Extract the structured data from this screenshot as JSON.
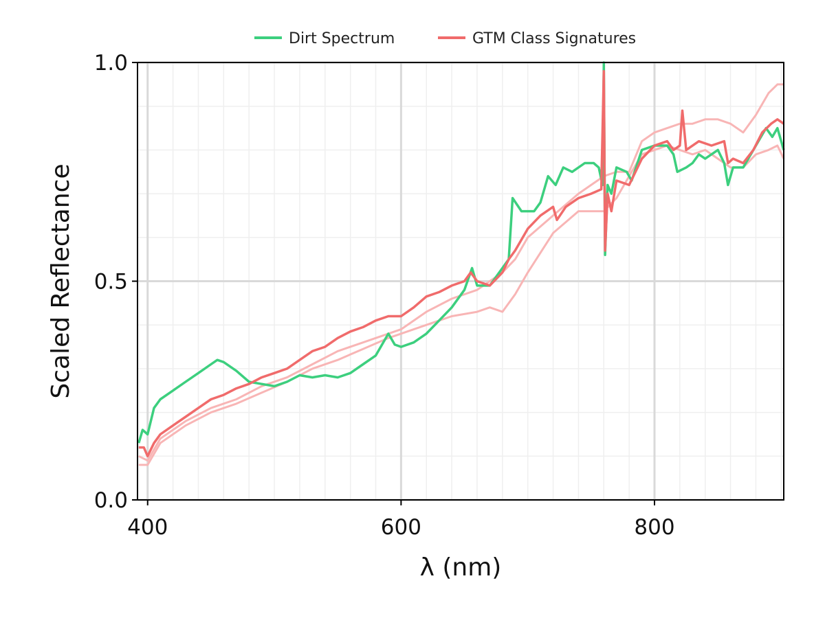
{
  "chart_data": {
    "type": "line",
    "title": "",
    "xlabel": "λ (nm)",
    "ylabel": "Scaled Reflectance",
    "xlim": [
      392,
      902
    ],
    "ylim": [
      0.0,
      1.0
    ],
    "x_ticks": [
      400,
      600,
      800
    ],
    "x_tick_labels": [
      "400",
      "600",
      "800"
    ],
    "y_ticks": [
      0.0,
      0.5,
      1.0
    ],
    "y_tick_labels": [
      "0.0",
      "0.5",
      "1.0"
    ],
    "grid": true,
    "legend": {
      "placement": "top-center, outside plot",
      "entries": [
        "Dirt Spectrum",
        "GTM Class Signatures"
      ]
    },
    "colors": {
      "dirt": "#3ccf7e",
      "gtm": "#f06b6b",
      "gtm_faint": "#f8b5b5",
      "grid_major": "#d9d9d9",
      "grid_minor": "#efefef"
    },
    "series": [
      {
        "name": "Dirt Spectrum",
        "role": "dirt",
        "points": [
          [
            393,
            0.13
          ],
          [
            396,
            0.16
          ],
          [
            400,
            0.15
          ],
          [
            405,
            0.21
          ],
          [
            410,
            0.23
          ],
          [
            420,
            0.25
          ],
          [
            430,
            0.27
          ],
          [
            440,
            0.29
          ],
          [
            450,
            0.31
          ],
          [
            455,
            0.32
          ],
          [
            460,
            0.315
          ],
          [
            470,
            0.295
          ],
          [
            480,
            0.27
          ],
          [
            490,
            0.265
          ],
          [
            500,
            0.26
          ],
          [
            510,
            0.27
          ],
          [
            520,
            0.285
          ],
          [
            530,
            0.28
          ],
          [
            540,
            0.285
          ],
          [
            550,
            0.28
          ],
          [
            560,
            0.29
          ],
          [
            570,
            0.31
          ],
          [
            580,
            0.33
          ],
          [
            590,
            0.38
          ],
          [
            595,
            0.355
          ],
          [
            600,
            0.35
          ],
          [
            610,
            0.36
          ],
          [
            620,
            0.38
          ],
          [
            630,
            0.41
          ],
          [
            640,
            0.44
          ],
          [
            650,
            0.48
          ],
          [
            656,
            0.53
          ],
          [
            660,
            0.49
          ],
          [
            670,
            0.49
          ],
          [
            680,
            0.53
          ],
          [
            685,
            0.55
          ],
          [
            688,
            0.69
          ],
          [
            695,
            0.66
          ],
          [
            705,
            0.66
          ],
          [
            710,
            0.68
          ],
          [
            716,
            0.74
          ],
          [
            722,
            0.72
          ],
          [
            728,
            0.76
          ],
          [
            735,
            0.75
          ],
          [
            745,
            0.77
          ],
          [
            752,
            0.77
          ],
          [
            756,
            0.76
          ],
          [
            759,
            0.72
          ],
          [
            760,
            1.0
          ],
          [
            761,
            0.56
          ],
          [
            763,
            0.72
          ],
          [
            766,
            0.7
          ],
          [
            770,
            0.76
          ],
          [
            778,
            0.75
          ],
          [
            782,
            0.73
          ],
          [
            790,
            0.8
          ],
          [
            800,
            0.81
          ],
          [
            810,
            0.81
          ],
          [
            815,
            0.79
          ],
          [
            818,
            0.75
          ],
          [
            825,
            0.76
          ],
          [
            830,
            0.77
          ],
          [
            835,
            0.79
          ],
          [
            840,
            0.78
          ],
          [
            850,
            0.8
          ],
          [
            855,
            0.77
          ],
          [
            858,
            0.72
          ],
          [
            862,
            0.76
          ],
          [
            870,
            0.76
          ],
          [
            876,
            0.79
          ],
          [
            882,
            0.82
          ],
          [
            888,
            0.85
          ],
          [
            893,
            0.83
          ],
          [
            897,
            0.85
          ],
          [
            902,
            0.8
          ]
        ]
      },
      {
        "name": "GTM Class Signatures",
        "role": "gtm",
        "points": [
          [
            393,
            0.12
          ],
          [
            397,
            0.12
          ],
          [
            400,
            0.1
          ],
          [
            405,
            0.13
          ],
          [
            410,
            0.15
          ],
          [
            420,
            0.17
          ],
          [
            430,
            0.19
          ],
          [
            440,
            0.21
          ],
          [
            450,
            0.23
          ],
          [
            460,
            0.24
          ],
          [
            470,
            0.255
          ],
          [
            480,
            0.265
          ],
          [
            490,
            0.28
          ],
          [
            500,
            0.29
          ],
          [
            510,
            0.3
          ],
          [
            520,
            0.32
          ],
          [
            530,
            0.34
          ],
          [
            540,
            0.35
          ],
          [
            550,
            0.37
          ],
          [
            560,
            0.385
          ],
          [
            570,
            0.395
          ],
          [
            580,
            0.41
          ],
          [
            590,
            0.42
          ],
          [
            600,
            0.42
          ],
          [
            610,
            0.44
          ],
          [
            620,
            0.465
          ],
          [
            630,
            0.475
          ],
          [
            640,
            0.49
          ],
          [
            650,
            0.5
          ],
          [
            655,
            0.52
          ],
          [
            660,
            0.5
          ],
          [
            670,
            0.49
          ],
          [
            680,
            0.52
          ],
          [
            685,
            0.55
          ],
          [
            690,
            0.57
          ],
          [
            700,
            0.62
          ],
          [
            710,
            0.65
          ],
          [
            720,
            0.67
          ],
          [
            723,
            0.64
          ],
          [
            730,
            0.67
          ],
          [
            740,
            0.69
          ],
          [
            750,
            0.7
          ],
          [
            758,
            0.71
          ],
          [
            760,
            0.98
          ],
          [
            761,
            0.57
          ],
          [
            763,
            0.7
          ],
          [
            766,
            0.66
          ],
          [
            770,
            0.73
          ],
          [
            780,
            0.72
          ],
          [
            790,
            0.78
          ],
          [
            800,
            0.81
          ],
          [
            810,
            0.82
          ],
          [
            815,
            0.8
          ],
          [
            820,
            0.81
          ],
          [
            822,
            0.89
          ],
          [
            825,
            0.8
          ],
          [
            835,
            0.82
          ],
          [
            845,
            0.81
          ],
          [
            855,
            0.82
          ],
          [
            858,
            0.77
          ],
          [
            862,
            0.78
          ],
          [
            870,
            0.77
          ],
          [
            878,
            0.8
          ],
          [
            885,
            0.84
          ],
          [
            892,
            0.86
          ],
          [
            897,
            0.87
          ],
          [
            902,
            0.86
          ]
        ]
      },
      {
        "name": "",
        "role": "gtm_faint",
        "points": [
          [
            393,
            0.1
          ],
          [
            400,
            0.09
          ],
          [
            410,
            0.14
          ],
          [
            430,
            0.18
          ],
          [
            450,
            0.21
          ],
          [
            470,
            0.23
          ],
          [
            490,
            0.26
          ],
          [
            510,
            0.28
          ],
          [
            530,
            0.31
          ],
          [
            550,
            0.34
          ],
          [
            570,
            0.36
          ],
          [
            590,
            0.38
          ],
          [
            600,
            0.39
          ],
          [
            620,
            0.43
          ],
          [
            640,
            0.46
          ],
          [
            660,
            0.48
          ],
          [
            680,
            0.52
          ],
          [
            690,
            0.55
          ],
          [
            700,
            0.6
          ],
          [
            720,
            0.65
          ],
          [
            740,
            0.7
          ],
          [
            750,
            0.72
          ],
          [
            760,
            0.74
          ],
          [
            770,
            0.75
          ],
          [
            780,
            0.75
          ],
          [
            790,
            0.82
          ],
          [
            800,
            0.84
          ],
          [
            810,
            0.85
          ],
          [
            820,
            0.86
          ],
          [
            830,
            0.86
          ],
          [
            840,
            0.87
          ],
          [
            850,
            0.87
          ],
          [
            860,
            0.86
          ],
          [
            870,
            0.84
          ],
          [
            880,
            0.88
          ],
          [
            890,
            0.93
          ],
          [
            897,
            0.95
          ],
          [
            902,
            0.95
          ]
        ]
      },
      {
        "name": "",
        "role": "gtm_faint",
        "points": [
          [
            393,
            0.08
          ],
          [
            400,
            0.08
          ],
          [
            410,
            0.13
          ],
          [
            430,
            0.17
          ],
          [
            450,
            0.2
          ],
          [
            470,
            0.22
          ],
          [
            490,
            0.245
          ],
          [
            510,
            0.27
          ],
          [
            530,
            0.3
          ],
          [
            550,
            0.32
          ],
          [
            570,
            0.345
          ],
          [
            590,
            0.37
          ],
          [
            600,
            0.38
          ],
          [
            620,
            0.4
          ],
          [
            640,
            0.42
          ],
          [
            660,
            0.43
          ],
          [
            670,
            0.44
          ],
          [
            680,
            0.43
          ],
          [
            690,
            0.47
          ],
          [
            700,
            0.52
          ],
          [
            720,
            0.61
          ],
          [
            740,
            0.66
          ],
          [
            760,
            0.66
          ],
          [
            770,
            0.69
          ],
          [
            780,
            0.74
          ],
          [
            790,
            0.79
          ],
          [
            800,
            0.8
          ],
          [
            810,
            0.81
          ],
          [
            820,
            0.8
          ],
          [
            830,
            0.79
          ],
          [
            840,
            0.8
          ],
          [
            850,
            0.78
          ],
          [
            860,
            0.76
          ],
          [
            870,
            0.76
          ],
          [
            880,
            0.79
          ],
          [
            890,
            0.8
          ],
          [
            897,
            0.81
          ],
          [
            902,
            0.78
          ]
        ]
      }
    ]
  }
}
